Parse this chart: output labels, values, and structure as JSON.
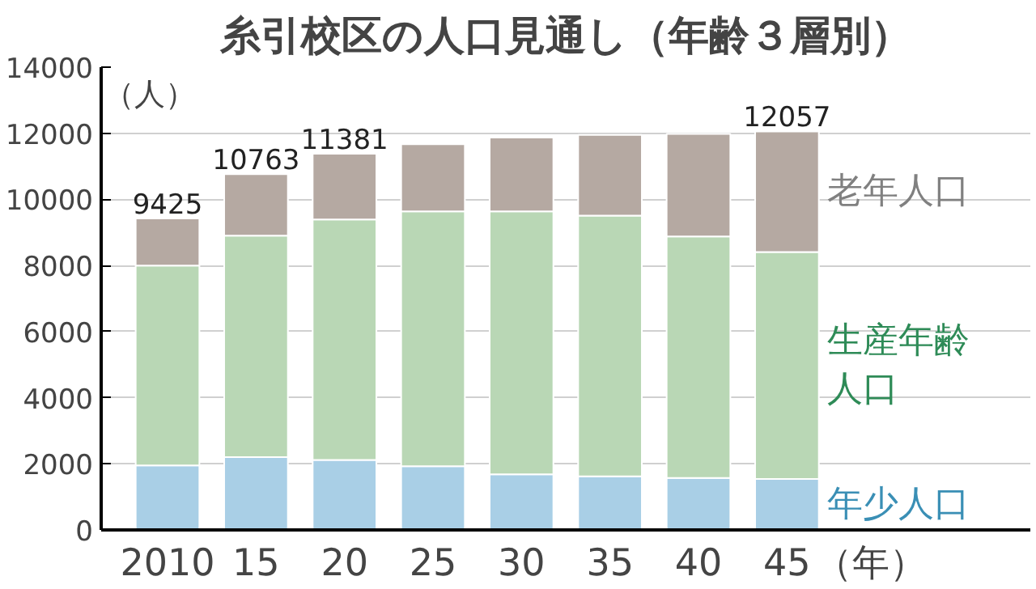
{
  "chart_data": {
    "type": "bar",
    "title": "糸引校区の人口見通し（年齢３層別）",
    "ylabel": "（人）",
    "xlabel": "（年）",
    "categories": [
      "2010",
      "15",
      "20",
      "25",
      "30",
      "35",
      "40",
      "45"
    ],
    "stacked": true,
    "series": [
      {
        "name": "年少人口",
        "color": "#a9cfe6",
        "values": [
          1950,
          2200,
          2120,
          1930,
          1680,
          1620,
          1570,
          1540
        ]
      },
      {
        "name": "生産年齢人口",
        "color": "#b9d7b5",
        "values": [
          6050,
          6700,
          7270,
          7710,
          7960,
          7890,
          7310,
          6870
        ]
      },
      {
        "name": "老年人口",
        "color": "#b5a9a2",
        "values": [
          1425,
          1863,
          1991,
          2030,
          2230,
          2440,
          3100,
          3647
        ]
      }
    ],
    "totals": [
      "9425",
      "10763",
      "11381",
      null,
      null,
      null,
      null,
      "12057"
    ],
    "ylim": [
      0,
      14000
    ],
    "yticks": [
      0,
      2000,
      4000,
      6000,
      8000,
      10000,
      12000,
      14000
    ],
    "grid": "y"
  }
}
